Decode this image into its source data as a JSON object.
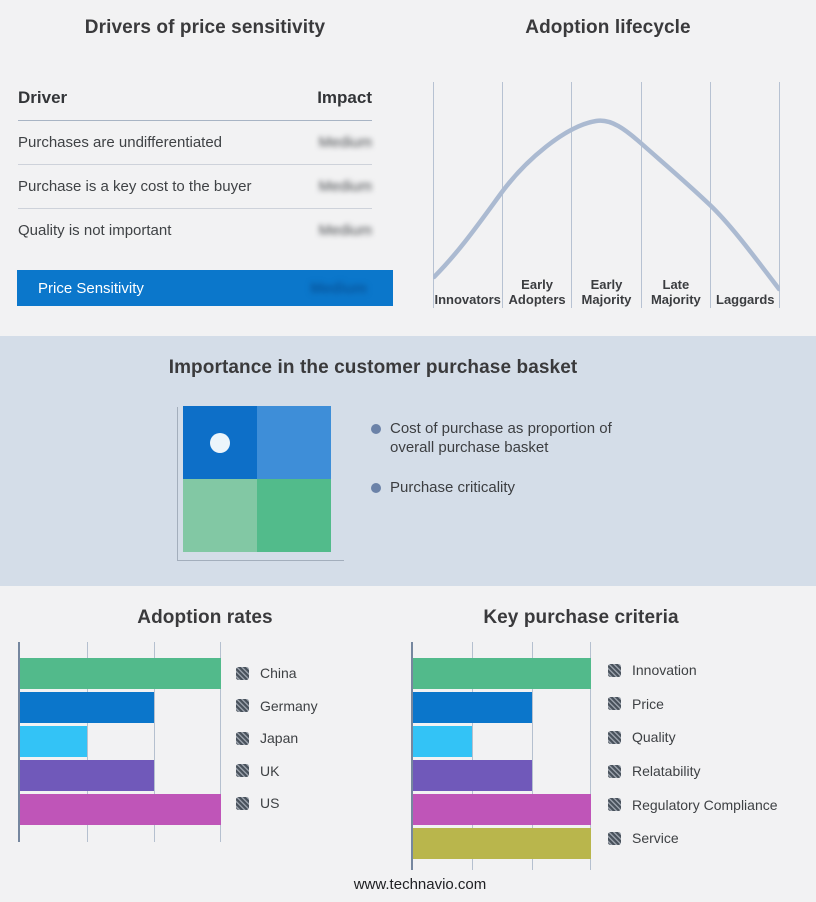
{
  "colors": {
    "accent_blue": "#0b77cb",
    "page_background": "#f2f2f3",
    "band_background": "#d4dde8",
    "curve": "#abbad1",
    "quadrant_top_left": "#0d6fc8",
    "quadrant_top_right": "#3e8ed8",
    "quadrant_bottom_left": "#82c8a4",
    "quadrant_bottom_right": "#52bb8b"
  },
  "drivers_panel": {
    "title": "Drivers of price sensitivity",
    "columns": {
      "driver": "Driver",
      "impact": "Impact"
    },
    "rows": [
      {
        "driver": "Purchases are undifferentiated",
        "impact": "Medium"
      },
      {
        "driver": "Purchase is a key cost to the buyer",
        "impact": "Medium"
      },
      {
        "driver": "Quality is not important",
        "impact": "Medium"
      }
    ],
    "summary_row": {
      "label": "Price Sensitivity",
      "impact": "Medium"
    }
  },
  "lifecycle_panel": {
    "title": "Adoption lifecycle",
    "stages": [
      "Innovators",
      "Early Adopters",
      "Early Majority",
      "Late Majority",
      "Laggards"
    ]
  },
  "basket_panel": {
    "title": "Importance in the customer purchase basket",
    "bullets": [
      "Cost of purchase as proportion of overall purchase basket",
      "Purchase criticality"
    ],
    "dot_position": "top-left-quadrant"
  },
  "footer": {
    "url": "www.technavio.com"
  },
  "chart_data": [
    {
      "type": "line",
      "title": "Adoption lifecycle",
      "x_categories": [
        "Innovators",
        "Early Adopters",
        "Early Majority",
        "Late Majority",
        "Laggards"
      ],
      "curve": "bell",
      "peak_category": "Early Majority",
      "grid": "vertical-only",
      "y_axis": "hidden"
    },
    {
      "type": "table",
      "title": "Drivers of price sensitivity",
      "columns": [
        "Driver",
        "Impact"
      ],
      "rows": [
        [
          "Purchases are undifferentiated",
          "Medium"
        ],
        [
          "Purchase is a key cost to the buyer",
          "Medium"
        ],
        [
          "Quality is not important",
          "Medium"
        ],
        [
          "Price Sensitivity",
          "Medium"
        ]
      ]
    },
    {
      "type": "bar",
      "title": "Adoption rates",
      "orientation": "horizontal",
      "categories": [
        "China",
        "Germany",
        "Japan",
        "UK",
        "US"
      ],
      "values": [
        3,
        2,
        1,
        2,
        3
      ],
      "colors": [
        "#52ba8b",
        "#0b76cb",
        "#33c3f6",
        "#7059ba",
        "#bf55b8"
      ],
      "xlim": [
        0,
        3
      ],
      "grid": true,
      "legend_position": "right"
    },
    {
      "type": "bar",
      "title": "Key purchase criteria",
      "orientation": "horizontal",
      "categories": [
        "Innovation",
        "Price",
        "Quality",
        "Relatability",
        "Regulatory Compliance",
        "Service"
      ],
      "values": [
        3,
        2,
        1,
        2,
        3,
        3
      ],
      "colors": [
        "#52ba8b",
        "#0b76cb",
        "#33c3f6",
        "#7059ba",
        "#bf55b8",
        "#b9b64c"
      ],
      "xlim": [
        0,
        3
      ],
      "grid": true,
      "legend_position": "right"
    }
  ]
}
